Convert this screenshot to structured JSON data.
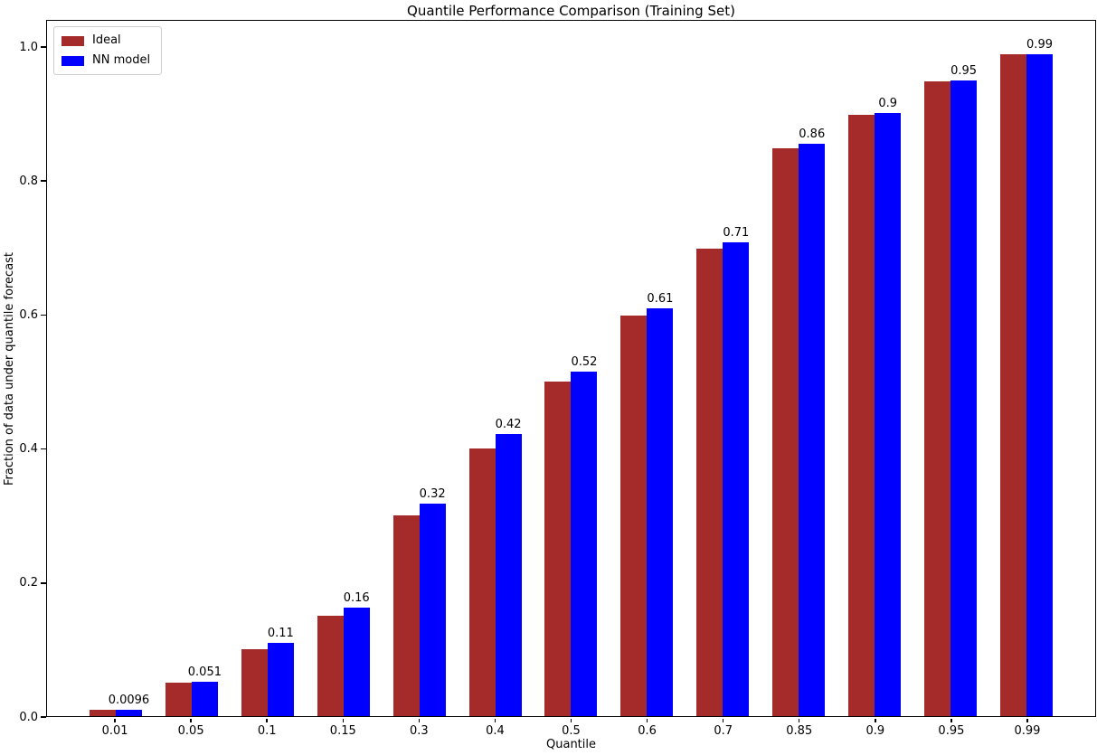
{
  "chart_data": {
    "type": "bar",
    "title": "Quantile Performance Comparison (Training Set)",
    "xlabel": "Quantile",
    "ylabel": "Fraction of data under quantile forecast",
    "categories": [
      "0.01",
      "0.05",
      "0.1",
      "0.15",
      "0.3",
      "0.4",
      "0.5",
      "0.6",
      "0.7",
      "0.85",
      "0.9",
      "0.95",
      "0.99"
    ],
    "series": [
      {
        "name": "Ideal",
        "color": "#a52a2a",
        "values": [
          0.01,
          0.05,
          0.1,
          0.15,
          0.3,
          0.4,
          0.5,
          0.6,
          0.7,
          0.85,
          0.9,
          0.95,
          0.99
        ]
      },
      {
        "name": "NN model",
        "color": "#0000ff",
        "values": [
          0.0096,
          0.051,
          0.11,
          0.163,
          0.318,
          0.422,
          0.516,
          0.61,
          0.709,
          0.857,
          0.903,
          0.951,
          0.991
        ],
        "bar_labels": [
          "0.0096",
          "0.051",
          "0.11",
          "0.16",
          "0.32",
          "0.42",
          "0.52",
          "0.61",
          "0.71",
          "0.86",
          "0.9",
          "0.95",
          "0.99"
        ]
      }
    ],
    "yticks": [
      "0.0",
      "0.2",
      "0.4",
      "0.6",
      "0.8",
      "1.0"
    ],
    "ylim": [
      0,
      1.0405
    ],
    "legend_position": "upper left",
    "grid": false,
    "colors": {
      "ideal": "#a52a2a",
      "nn_model": "#0000ff",
      "spine": "#000000",
      "legend_border": "#cccccc",
      "background": "#ffffff"
    }
  }
}
